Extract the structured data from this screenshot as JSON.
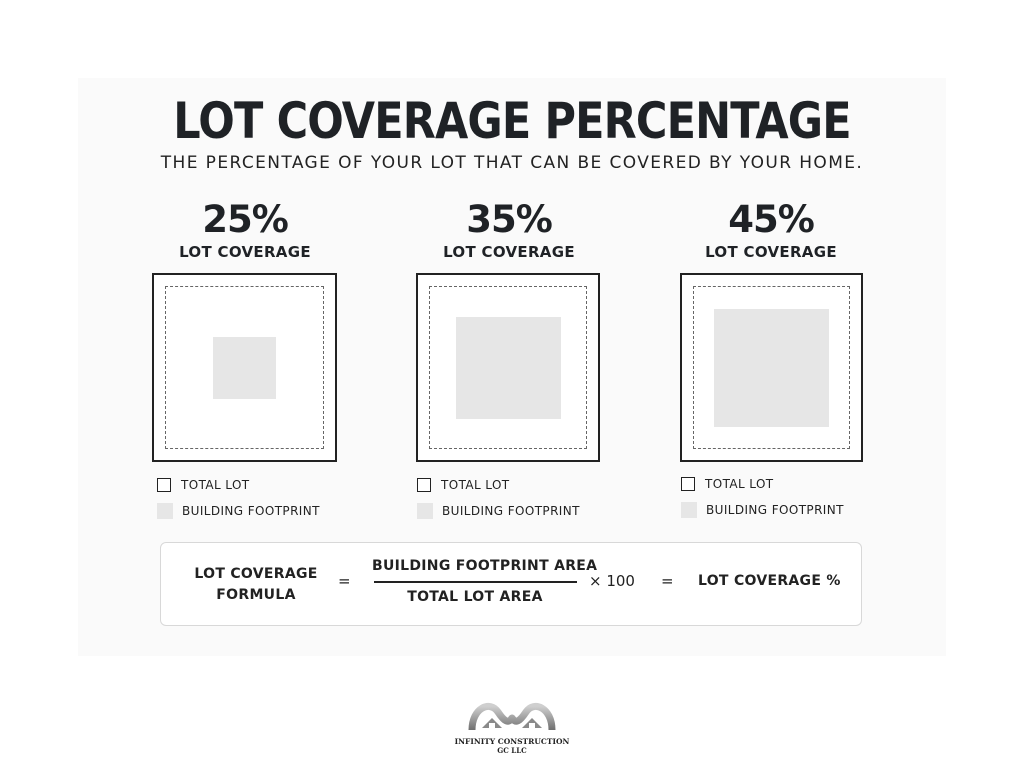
{
  "title": "LOT COVERAGE PERCENTAGE",
  "subtitle": "THE PERCENTAGE OF YOUR LOT THAT CAN BE COVERED BY YOUR HOME.",
  "panels": [
    {
      "percent": "25%",
      "caption": "LOT COVERAGE",
      "legend_lot": "TOTAL LOT",
      "legend_footprint": "BUILDING FOOTPRINT"
    },
    {
      "percent": "35%",
      "caption": "LOT COVERAGE",
      "legend_lot": "TOTAL LOT",
      "legend_footprint": "BUILDING FOOTPRINT"
    },
    {
      "percent": "45%",
      "caption": "LOT COVERAGE",
      "legend_lot": "TOTAL LOT",
      "legend_footprint": "BUILDING FOOTPRINT"
    }
  ],
  "formula": {
    "label_line1": "LOT COVERAGE",
    "label_line2": "FORMULA",
    "equals": "=",
    "numerator": "BUILDING FOOTPRINT AREA",
    "denominator": "TOTAL LOT AREA",
    "multiplier": "× 100",
    "equals2": "=",
    "result": "LOT COVERAGE %"
  },
  "logo": {
    "name": "INFINITY CONSTRUCTION",
    "suffix": "GC LLC"
  },
  "colors": {
    "footprint": "#e6e6e6",
    "outline": "#222222",
    "background": "#fafafa"
  }
}
